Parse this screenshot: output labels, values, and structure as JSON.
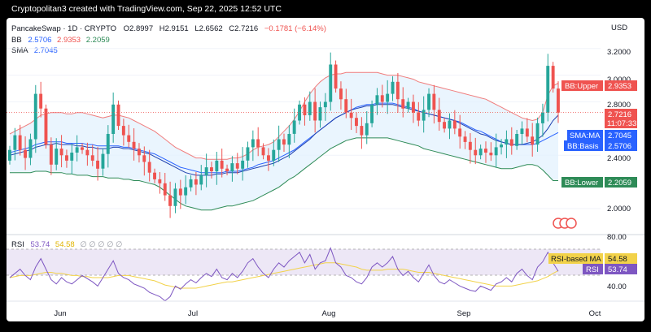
{
  "header": {
    "credit": "Cryptopolitan3 created with TradingView.com, Sep 22, 2025 12:52 UTC",
    "symbol_line": {
      "symbol": "PancakeSwap · 1D · CRYPTO",
      "open": "O2.8997",
      "high": "H2.9151",
      "low": "L2.6562",
      "close": "C2.7216",
      "change": "−0.1781 (−6.14%)"
    },
    "bb_line": {
      "label": "BB",
      "basis": "2.5706",
      "upper": "2.9353",
      "lower": "2.2059"
    },
    "sma_line": {
      "label": "SMA",
      "value": "2.7045"
    },
    "currency": "USD"
  },
  "rsi_header": {
    "label": "RSI",
    "rsi": "53.74",
    "ma": "54.58",
    "placeholders": "∅ ∅ ∅ ∅ ∅"
  },
  "price_axis_ticks": [
    "3.2000",
    "3.0000",
    "2.8000",
    "2.4000",
    "2.0000"
  ],
  "rsi_axis_ticks": [
    "80.00",
    "40.00"
  ],
  "time_axis": [
    "Jun",
    "Jul",
    "Aug",
    "Sep",
    "Oct"
  ],
  "badges": {
    "bb_upper": {
      "label": "BB:Upper",
      "value": "2.9353"
    },
    "price": {
      "value": "2.7216",
      "countdown": "11:07:33"
    },
    "sma": {
      "label": "SMA:MA",
      "value": "2.7045"
    },
    "bb_basis": {
      "label": "BB:Basis",
      "value": "2.5706"
    },
    "bb_lower": {
      "label": "BB:Lower",
      "value": "2.2059"
    },
    "rsi_ma": {
      "label": "RSI-based MA",
      "value": "54.58"
    },
    "rsi": {
      "label": "RSI",
      "value": "53.74"
    }
  },
  "colors": {
    "background": "#ffffff",
    "bull": "#26a69a",
    "bear": "#ef5350",
    "bb_upper": "#f07d7d",
    "bb_lower": "#2e8b57",
    "bb_basis": "#2962ff",
    "bb_fill": "#e3f2fd",
    "sma": "#1e40af",
    "rsi_line": "#7e57c2",
    "rsi_ma": "#f2d24a",
    "rsi_band": "#ede7f6"
  },
  "chart_data": [
    {
      "type": "candlestick",
      "ylabel": "USD",
      "ylim": [
        1.83,
        3.32
      ],
      "x_labels": [
        "Jun",
        "Jul",
        "Aug",
        "Sep",
        "Oct"
      ],
      "candles_open_close": [
        [
          2.36,
          2.44
        ],
        [
          2.44,
          2.55
        ],
        [
          2.55,
          2.44
        ],
        [
          2.44,
          2.38
        ],
        [
          2.38,
          2.52
        ],
        [
          2.52,
          2.86
        ],
        [
          2.86,
          2.75
        ],
        [
          2.75,
          2.48
        ],
        [
          2.48,
          2.33
        ],
        [
          2.33,
          2.45
        ],
        [
          2.45,
          2.4
        ],
        [
          2.4,
          2.36
        ],
        [
          2.36,
          2.42
        ],
        [
          2.42,
          2.46
        ],
        [
          2.46,
          2.44
        ],
        [
          2.44,
          2.4
        ],
        [
          2.4,
          2.36
        ],
        [
          2.36,
          2.3
        ],
        [
          2.3,
          2.41
        ],
        [
          2.41,
          2.56
        ],
        [
          2.56,
          2.78
        ],
        [
          2.78,
          2.62
        ],
        [
          2.62,
          2.55
        ],
        [
          2.55,
          2.5
        ],
        [
          2.5,
          2.45
        ],
        [
          2.45,
          2.4
        ],
        [
          2.4,
          2.35
        ],
        [
          2.35,
          2.27
        ],
        [
          2.27,
          2.22
        ],
        [
          2.22,
          2.19
        ],
        [
          2.19,
          2.1
        ],
        [
          2.1,
          2.02
        ],
        [
          2.02,
          2.15
        ],
        [
          2.15,
          2.1
        ],
        [
          2.1,
          2.16
        ],
        [
          2.16,
          2.22
        ],
        [
          2.22,
          2.18
        ],
        [
          2.18,
          2.25
        ],
        [
          2.25,
          2.31
        ],
        [
          2.31,
          2.28
        ],
        [
          2.28,
          2.36
        ],
        [
          2.36,
          2.3
        ],
        [
          2.3,
          2.28
        ],
        [
          2.28,
          2.34
        ],
        [
          2.34,
          2.3
        ],
        [
          2.3,
          2.36
        ],
        [
          2.36,
          2.46
        ],
        [
          2.46,
          2.52
        ],
        [
          2.52,
          2.46
        ],
        [
          2.46,
          2.4
        ],
        [
          2.4,
          2.36
        ],
        [
          2.36,
          2.44
        ],
        [
          2.44,
          2.52
        ],
        [
          2.52,
          2.48
        ],
        [
          2.48,
          2.56
        ],
        [
          2.56,
          2.66
        ],
        [
          2.66,
          2.78
        ],
        [
          2.78,
          2.7
        ],
        [
          2.7,
          2.8
        ],
        [
          2.8,
          2.66
        ],
        [
          2.66,
          2.76
        ],
        [
          2.76,
          2.8
        ],
        [
          2.8,
          3.08
        ],
        [
          3.08,
          2.9
        ],
        [
          2.9,
          2.82
        ],
        [
          2.82,
          2.72
        ],
        [
          2.72,
          2.68
        ],
        [
          2.68,
          2.62
        ],
        [
          2.62,
          2.55
        ],
        [
          2.55,
          2.64
        ],
        [
          2.64,
          2.78
        ],
        [
          2.78,
          2.85
        ],
        [
          2.85,
          2.8
        ],
        [
          2.8,
          2.86
        ],
        [
          2.86,
          2.95
        ],
        [
          2.95,
          2.82
        ],
        [
          2.82,
          2.75
        ],
        [
          2.75,
          2.8
        ],
        [
          2.8,
          2.72
        ],
        [
          2.72,
          2.66
        ],
        [
          2.66,
          2.74
        ],
        [
          2.74,
          2.86
        ],
        [
          2.86,
          2.74
        ],
        [
          2.74,
          2.65
        ],
        [
          2.65,
          2.6
        ],
        [
          2.6,
          2.66
        ],
        [
          2.66,
          2.6
        ],
        [
          2.6,
          2.54
        ],
        [
          2.54,
          2.5
        ],
        [
          2.5,
          2.44
        ],
        [
          2.44,
          2.4
        ],
        [
          2.4,
          2.45
        ],
        [
          2.45,
          2.42
        ],
        [
          2.42,
          2.4
        ],
        [
          2.4,
          2.46
        ],
        [
          2.46,
          2.48
        ],
        [
          2.48,
          2.52
        ],
        [
          2.52,
          2.47
        ],
        [
          2.47,
          2.56
        ],
        [
          2.56,
          2.6
        ],
        [
          2.6,
          2.54
        ],
        [
          2.54,
          2.48
        ],
        [
          2.48,
          2.64
        ],
        [
          2.64,
          2.72
        ],
        [
          2.72,
          3.07
        ],
        [
          3.07,
          2.9
        ],
        [
          2.9,
          2.72
        ]
      ],
      "bb_upper": [
        2.56,
        2.58,
        2.6,
        2.62,
        2.64,
        2.67,
        2.7,
        2.71,
        2.72,
        2.72,
        2.72,
        2.71,
        2.71,
        2.72,
        2.72,
        2.71,
        2.7,
        2.69,
        2.68,
        2.69,
        2.7,
        2.7,
        2.69,
        2.68,
        2.66,
        2.64,
        2.62,
        2.6,
        2.58,
        2.55,
        2.52,
        2.49,
        2.46,
        2.44,
        2.42,
        2.4,
        2.38,
        2.38,
        2.37,
        2.37,
        2.37,
        2.37,
        2.37,
        2.38,
        2.38,
        2.39,
        2.41,
        2.44,
        2.46,
        2.47,
        2.48,
        2.5,
        2.54,
        2.58,
        2.62,
        2.67,
        2.73,
        2.8,
        2.86,
        2.91,
        2.95,
        2.98,
        3.0,
        3.01,
        3.01,
        3.02,
        3.02,
        3.02,
        3.02,
        3.02,
        3.02,
        3.02,
        3.01,
        3.0,
        3.0,
        3.0,
        2.99,
        2.98,
        2.97,
        2.95,
        2.94,
        2.93,
        2.92,
        2.91,
        2.9,
        2.89,
        2.88,
        2.87,
        2.86,
        2.85,
        2.84,
        2.83,
        2.82,
        2.8,
        2.78,
        2.76,
        2.74,
        2.72,
        2.7,
        2.68,
        2.67,
        2.66,
        2.67,
        2.72,
        2.85,
        2.92,
        2.94
      ],
      "bb_basis": [
        2.42,
        2.43,
        2.44,
        2.45,
        2.46,
        2.48,
        2.49,
        2.5,
        2.5,
        2.5,
        2.5,
        2.49,
        2.49,
        2.49,
        2.49,
        2.48,
        2.48,
        2.47,
        2.47,
        2.47,
        2.47,
        2.47,
        2.46,
        2.46,
        2.45,
        2.44,
        2.43,
        2.42,
        2.41,
        2.39,
        2.37,
        2.35,
        2.33,
        2.31,
        2.3,
        2.29,
        2.28,
        2.27,
        2.27,
        2.27,
        2.27,
        2.27,
        2.28,
        2.28,
        2.28,
        2.29,
        2.3,
        2.31,
        2.33,
        2.34,
        2.35,
        2.36,
        2.38,
        2.4,
        2.42,
        2.44,
        2.47,
        2.5,
        2.53,
        2.56,
        2.59,
        2.62,
        2.65,
        2.68,
        2.7,
        2.72,
        2.74,
        2.76,
        2.77,
        2.78,
        2.78,
        2.79,
        2.79,
        2.79,
        2.79,
        2.78,
        2.77,
        2.76,
        2.75,
        2.73,
        2.72,
        2.71,
        2.7,
        2.69,
        2.68,
        2.67,
        2.66,
        2.65,
        2.63,
        2.61,
        2.59,
        2.58,
        2.56,
        2.54,
        2.52,
        2.5,
        2.49,
        2.48,
        2.48,
        2.48,
        2.48,
        2.48,
        2.49,
        2.51,
        2.53,
        2.55,
        2.57
      ],
      "bb_lower": [
        2.27,
        2.27,
        2.27,
        2.27,
        2.27,
        2.28,
        2.28,
        2.28,
        2.27,
        2.27,
        2.27,
        2.26,
        2.26,
        2.25,
        2.25,
        2.25,
        2.24,
        2.24,
        2.24,
        2.23,
        2.23,
        2.23,
        2.22,
        2.22,
        2.21,
        2.21,
        2.2,
        2.19,
        2.18,
        2.16,
        2.13,
        2.1,
        2.07,
        2.04,
        2.02,
        2.01,
        2.0,
        1.99,
        1.99,
        1.99,
        2.0,
        2.01,
        2.02,
        2.02,
        2.03,
        2.04,
        2.05,
        2.06,
        2.08,
        2.1,
        2.12,
        2.14,
        2.16,
        2.19,
        2.22,
        2.24,
        2.27,
        2.3,
        2.33,
        2.36,
        2.39,
        2.42,
        2.45,
        2.47,
        2.49,
        2.51,
        2.52,
        2.53,
        2.53,
        2.53,
        2.53,
        2.53,
        2.53,
        2.53,
        2.52,
        2.51,
        2.5,
        2.49,
        2.48,
        2.47,
        2.45,
        2.44,
        2.43,
        2.42,
        2.41,
        2.4,
        2.39,
        2.38,
        2.37,
        2.36,
        2.35,
        2.34,
        2.33,
        2.32,
        2.31,
        2.3,
        2.3,
        2.3,
        2.31,
        2.32,
        2.33,
        2.33,
        2.32,
        2.29,
        2.25,
        2.21,
        2.21
      ],
      "sma": [
        2.4,
        2.41,
        2.42,
        2.43,
        2.44,
        2.46,
        2.47,
        2.48,
        2.48,
        2.49,
        2.48,
        2.48,
        2.48,
        2.47,
        2.47,
        2.46,
        2.46,
        2.45,
        2.45,
        2.45,
        2.46,
        2.46,
        2.45,
        2.45,
        2.44,
        2.43,
        2.42,
        2.41,
        2.39,
        2.37,
        2.35,
        2.33,
        2.31,
        2.29,
        2.27,
        2.26,
        2.25,
        2.25,
        2.25,
        2.25,
        2.26,
        2.26,
        2.27,
        2.27,
        2.27,
        2.28,
        2.29,
        2.3,
        2.31,
        2.32,
        2.33,
        2.34,
        2.36,
        2.38,
        2.4,
        2.43,
        2.46,
        2.49,
        2.52,
        2.56,
        2.59,
        2.62,
        2.65,
        2.68,
        2.7,
        2.72,
        2.74,
        2.75,
        2.76,
        2.77,
        2.77,
        2.78,
        2.78,
        2.78,
        2.78,
        2.77,
        2.76,
        2.75,
        2.74,
        2.73,
        2.72,
        2.71,
        2.7,
        2.69,
        2.68,
        2.67,
        2.66,
        2.64,
        2.62,
        2.6,
        2.58,
        2.56,
        2.55,
        2.53,
        2.51,
        2.5,
        2.49,
        2.48,
        2.48,
        2.48,
        2.49,
        2.5,
        2.52,
        2.55,
        2.6,
        2.66,
        2.7
      ]
    },
    {
      "type": "line",
      "title": "RSI",
      "ylim": [
        28,
        88
      ],
      "rsi": [
        48,
        52,
        56,
        50,
        46,
        58,
        66,
        56,
        46,
        42,
        48,
        44,
        42,
        46,
        50,
        47,
        44,
        40,
        48,
        56,
        64,
        52,
        48,
        46,
        42,
        40,
        38,
        34,
        32,
        30,
        26,
        30,
        40,
        37,
        42,
        46,
        43,
        48,
        52,
        49,
        56,
        48,
        46,
        52,
        48,
        54,
        62,
        66,
        58,
        52,
        48,
        56,
        62,
        58,
        64,
        68,
        72,
        62,
        70,
        56,
        62,
        64,
        76,
        62,
        58,
        50,
        48,
        44,
        42,
        48,
        58,
        62,
        58,
        62,
        68,
        56,
        50,
        54,
        48,
        44,
        52,
        60,
        50,
        44,
        42,
        46,
        43,
        40,
        38,
        36,
        35,
        40,
        38,
        36,
        42,
        44,
        48,
        44,
        52,
        56,
        50,
        46,
        58,
        63,
        72,
        62,
        54
      ],
      "rsi_ma": [
        48,
        49,
        50,
        50,
        50,
        51,
        52,
        53,
        53,
        52,
        52,
        51,
        50,
        50,
        49,
        49,
        48,
        48,
        48,
        48,
        49,
        50,
        50,
        50,
        49,
        48,
        47,
        46,
        45,
        43,
        41,
        40,
        39,
        38,
        38,
        38,
        38,
        39,
        40,
        41,
        42,
        43,
        44,
        44,
        45,
        46,
        47,
        48,
        49,
        50,
        51,
        52,
        53,
        54,
        55,
        56,
        57,
        58,
        59,
        60,
        61,
        62,
        62,
        62,
        61,
        60,
        59,
        58,
        56,
        55,
        55,
        55,
        55,
        56,
        56,
        56,
        56,
        55,
        54,
        53,
        53,
        53,
        52,
        51,
        50,
        49,
        48,
        47,
        46,
        45,
        44,
        43,
        42,
        41,
        40,
        40,
        40,
        40,
        41,
        42,
        43,
        44,
        45,
        47,
        49,
        52,
        54.58
      ]
    }
  ]
}
